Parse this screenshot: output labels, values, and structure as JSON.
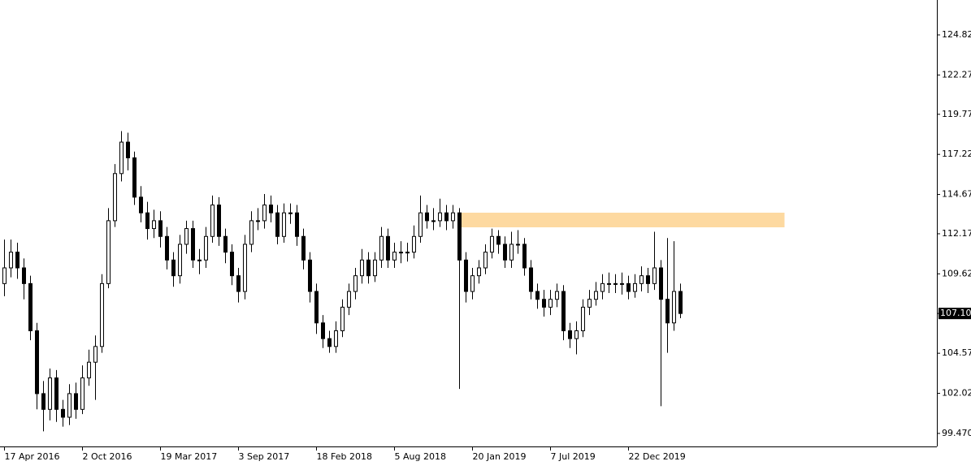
{
  "chart_data": {
    "type": "candlestick",
    "categories": [
      "17 Apr 2016",
      null,
      null,
      null,
      null,
      null,
      null,
      null,
      null,
      null,
      null,
      null,
      "2 Oct 2016",
      null,
      null,
      null,
      null,
      null,
      null,
      null,
      null,
      null,
      null,
      null,
      "19 Mar 2017",
      null,
      null,
      null,
      null,
      null,
      null,
      null,
      null,
      null,
      null,
      null,
      "3 Sep 2017",
      null,
      null,
      null,
      null,
      null,
      null,
      null,
      null,
      null,
      null,
      null,
      "18 Feb 2018",
      null,
      null,
      null,
      null,
      null,
      null,
      null,
      null,
      null,
      null,
      null,
      "5 Aug 2018",
      null,
      null,
      null,
      null,
      null,
      null,
      null,
      null,
      null,
      null,
      null,
      "20 Jan 2019",
      null,
      null,
      null,
      null,
      null,
      null,
      null,
      null,
      null,
      null,
      null,
      "7 Jul 2019",
      null,
      null,
      null,
      null,
      null,
      null,
      null,
      null,
      null,
      null,
      null,
      "22 Dec 2019",
      null,
      null,
      null,
      null,
      null,
      null,
      null,
      null
    ],
    "open": [
      109,
      110,
      111,
      110,
      109,
      106,
      102,
      101,
      103,
      101,
      100.5,
      102,
      101,
      103,
      104,
      105,
      109,
      113,
      116,
      118,
      117,
      114.5,
      113.5,
      112.5,
      113,
      112,
      110.5,
      109.5,
      111.5,
      112.5,
      110.5,
      110.5,
      112,
      114,
      112,
      111,
      109.5,
      108.5,
      111.5,
      113,
      113,
      114,
      113.5,
      112,
      113.5,
      113.5,
      112,
      110.5,
      108.5,
      106.5,
      105.5,
      105,
      106,
      107.5,
      108.5,
      109.5,
      110.5,
      109.5,
      110.5,
      112,
      110.5,
      111,
      111,
      111,
      112,
      113.5,
      113,
      113,
      113.5,
      113,
      113.5,
      110.5,
      108.5,
      109.5,
      110,
      111,
      112,
      111.5,
      110.5,
      111.5,
      111.5,
      110,
      108.5,
      108,
      107.5,
      108,
      108.5,
      106,
      105.5,
      106,
      107.5,
      108,
      108.5,
      109,
      109,
      109,
      109,
      108.5,
      109,
      109.5,
      109,
      110,
      108,
      106.5,
      108.5
    ],
    "high": [
      111.8,
      111.8,
      111.6,
      110.6,
      109.5,
      106.5,
      102.8,
      103.6,
      103.5,
      101.6,
      102.6,
      102.7,
      103.8,
      104.8,
      105.7,
      109.6,
      113.8,
      116.6,
      118.7,
      118.6,
      117.4,
      115.2,
      114.2,
      113.7,
      113.6,
      112.6,
      111,
      112.1,
      113,
      113,
      111.2,
      112.6,
      114.6,
      114.5,
      112.5,
      111.5,
      110,
      112.1,
      113.6,
      113.8,
      114.7,
      114.6,
      114,
      114.1,
      114.1,
      114,
      112.5,
      111,
      109,
      107,
      106,
      106.6,
      108,
      109,
      110,
      111.2,
      111,
      111,
      112.6,
      112.5,
      111.6,
      111.7,
      111.6,
      112.7,
      114.6,
      114,
      113.8,
      114.4,
      114,
      114,
      113.8,
      111,
      110,
      110.5,
      111.5,
      112.5,
      112.4,
      112,
      112.3,
      112.4,
      111.9,
      110.5,
      109,
      108.6,
      108.6,
      109,
      108.9,
      106.5,
      106.6,
      108,
      108.6,
      109.1,
      109.6,
      109.7,
      109.6,
      109.7,
      109.5,
      109.6,
      110.1,
      110,
      112.3,
      110.5,
      111.9,
      111.7,
      109
    ],
    "low": [
      108.2,
      109.4,
      109.3,
      108,
      105.4,
      101,
      99.6,
      100.3,
      100.2,
      99.9,
      100,
      100.4,
      100.7,
      102.5,
      101.6,
      104.6,
      108.7,
      112.6,
      115.5,
      116.2,
      114,
      112.9,
      111.8,
      111.9,
      111.3,
      109.9,
      108.8,
      109,
      110.9,
      110,
      109.6,
      110,
      111.6,
      111.4,
      110.3,
      108.9,
      107.8,
      108,
      111,
      112.4,
      112.5,
      112.9,
      111.5,
      111.6,
      112.8,
      111.4,
      109.9,
      107.8,
      105.8,
      104.9,
      104.6,
      104.6,
      105.6,
      107,
      108,
      109,
      109,
      109.1,
      110,
      110,
      110,
      110.3,
      110.4,
      110.6,
      111.6,
      112.5,
      112.4,
      112.6,
      112.4,
      112.5,
      102.3,
      107.8,
      108,
      109,
      109.6,
      110.6,
      110.9,
      110,
      110,
      110.9,
      109.5,
      108,
      107.4,
      106.9,
      107,
      107.5,
      105.4,
      104.9,
      104.5,
      105.6,
      107,
      107.6,
      108,
      108.4,
      108.4,
      108.3,
      108,
      108.1,
      108.5,
      108.4,
      108.6,
      101.2,
      104.6,
      106,
      106.8
    ],
    "close": [
      110,
      111,
      110,
      109,
      106,
      102,
      101,
      103,
      101,
      100.5,
      102,
      101,
      103,
      104,
      105,
      109,
      113,
      116,
      118,
      117,
      114.5,
      113.5,
      112.5,
      113,
      112,
      110.5,
      109.5,
      111.5,
      112.5,
      110.5,
      110.5,
      112,
      114,
      112,
      111,
      109.5,
      108.5,
      111.5,
      113,
      113,
      114,
      113.5,
      112,
      113.5,
      113.5,
      112,
      110.5,
      108.5,
      106.5,
      105.5,
      105,
      106,
      107.5,
      108.5,
      109.5,
      110.5,
      109.5,
      110.5,
      112,
      110.5,
      111,
      111,
      111,
      112,
      113.5,
      113,
      113,
      113.5,
      113,
      113.5,
      110.5,
      108.5,
      109.5,
      110,
      111,
      112,
      111.5,
      110.5,
      111.5,
      111.5,
      110,
      108.5,
      108,
      107.5,
      108,
      108.5,
      106,
      105.5,
      106,
      107.5,
      108,
      108.5,
      109,
      109,
      109,
      109,
      108.5,
      109,
      109.5,
      109,
      110,
      108,
      106.5,
      108.5,
      107.1
    ],
    "up_color": "#ffffff",
    "down_color": "#000000",
    "wick_color": "#000000",
    "ylim": [
      98.64,
      127.04
    ],
    "yticks": [
      {
        "value": 99.47,
        "label": "99.470"
      },
      102.02,
      104.57,
      107.1,
      109.62,
      112.17,
      114.67,
      117.22,
      119.77,
      122.27,
      124.82
    ],
    "last_price": {
      "value": 107.1,
      "label": "107.10"
    },
    "zones": [
      {
        "from": 112.58,
        "to": 113.51,
        "start": 70,
        "end": 120,
        "color": "#fdd9a0"
      }
    ]
  }
}
